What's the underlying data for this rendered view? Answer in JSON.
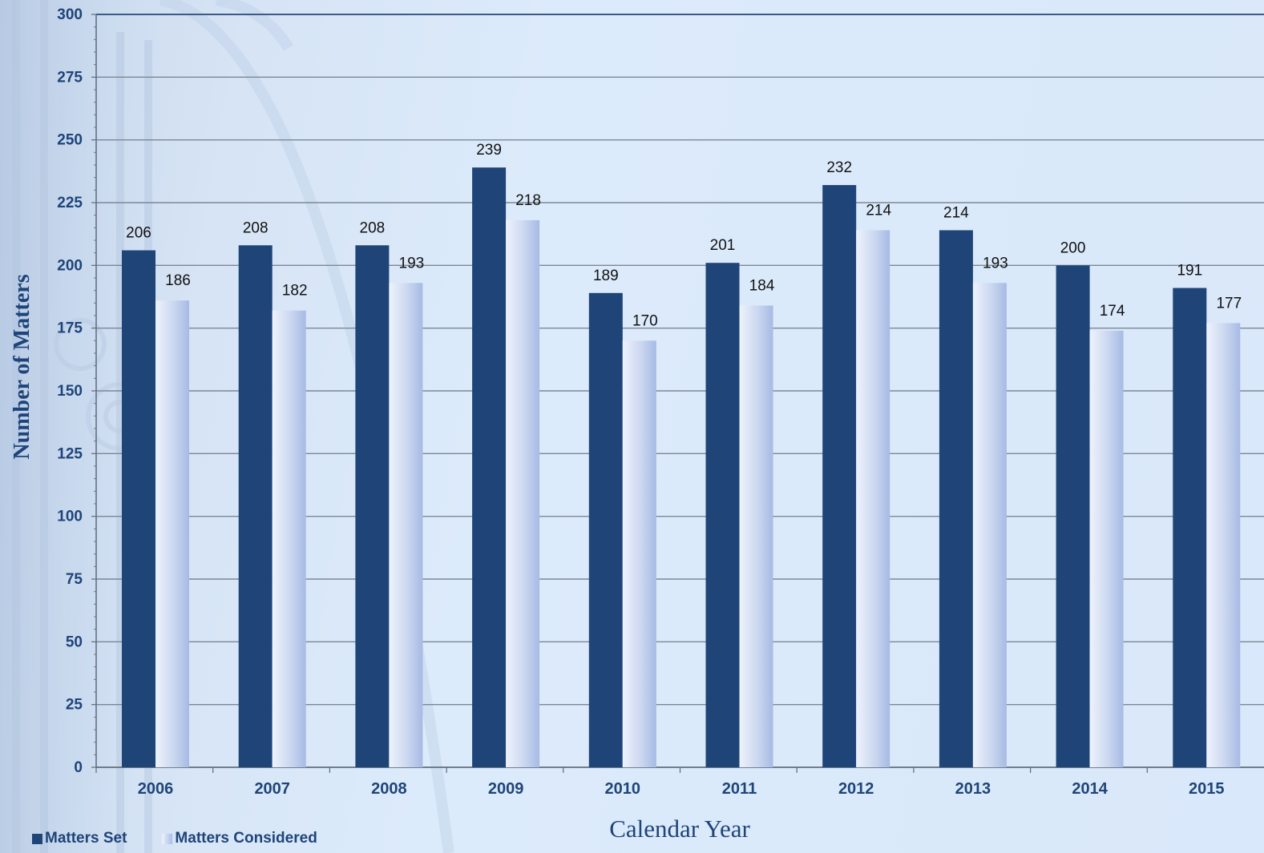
{
  "chart_data": {
    "type": "bar",
    "xlabel": "Calendar Year",
    "ylabel": "Number of Matters",
    "ylim": [
      0,
      300
    ],
    "ytick_step": 25,
    "grid": true,
    "legend_position": "bottom-left",
    "categories": [
      "2006",
      "2007",
      "2008",
      "2009",
      "2010",
      "2011",
      "2012",
      "2013",
      "2014",
      "2015"
    ],
    "series": [
      {
        "name": "Matters Set",
        "color": "#1f4478",
        "values": [
          206,
          208,
          208,
          239,
          189,
          201,
          232,
          214,
          200,
          191
        ]
      },
      {
        "name": "Matters Considered",
        "color": "#c5d3ef",
        "values": [
          186,
          182,
          193,
          218,
          170,
          184,
          214,
          193,
          174,
          177
        ]
      }
    ]
  }
}
